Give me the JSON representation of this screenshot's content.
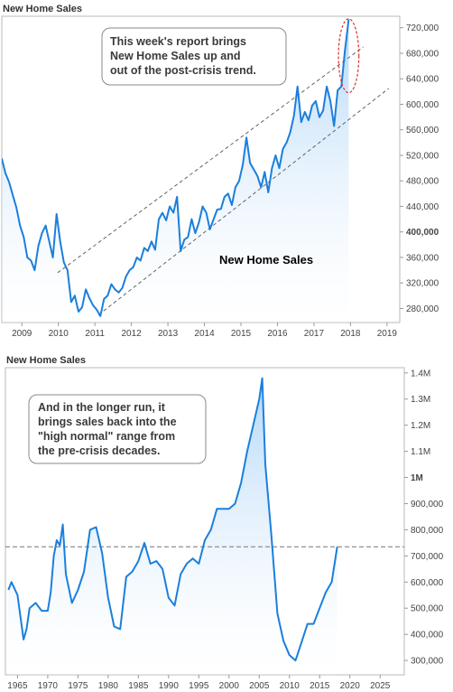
{
  "chart_data": [
    {
      "type": "area",
      "title": "New Home Sales",
      "xlabel": "",
      "ylabel": "",
      "xlim": [
        2008.45,
        2019.35
      ],
      "ylim": [
        258000,
        738000
      ],
      "x_ticks": [
        "2009",
        "2010",
        "2011",
        "2012",
        "2013",
        "2014",
        "2015",
        "2016",
        "2017",
        "2018",
        "2019"
      ],
      "x_tick_values": [
        2009,
        2010,
        2011,
        2012,
        2013,
        2014,
        2015,
        2016,
        2017,
        2018,
        2019
      ],
      "y_ticks": [
        "280,000",
        "320,000",
        "360,000",
        "400,000",
        "440,000",
        "480,000",
        "520,000",
        "560,000",
        "600,000",
        "640,000",
        "680,000",
        "720,000"
      ],
      "y_tick_values": [
        280000,
        320000,
        360000,
        400000,
        440000,
        480000,
        520000,
        560000,
        600000,
        640000,
        680000,
        720000
      ],
      "y_tick_bold": "400,000",
      "grid": false,
      "line_color": "#1b7fdc",
      "fill_color": "#cfe6fb",
      "series_label": "New Home Sales",
      "series_label_color": "#1b7fdc",
      "annotation": "This week's report brings New Home Sales up and out of the post-crisis trend.",
      "annotation_lines": [
        "This week's report brings",
        "New Home Sales up and",
        "out of the post-crisis trend."
      ],
      "channel_lines": [
        {
          "x": [
            2009.98,
            2018.35
          ],
          "y": [
            336000,
            690000
          ]
        },
        {
          "x": [
            2011.1,
            2019.05
          ],
          "y": [
            270000,
            625000
          ]
        }
      ],
      "highlight_ellipse": {
        "center": [
          2017.95,
          676000
        ],
        "rx_years": 0.28,
        "ry_value": 58000,
        "color": "#e0302f"
      },
      "series": [
        {
          "x": [
            2008.45,
            2008.55,
            2008.65,
            2008.75,
            2008.85,
            2008.95,
            2009.05,
            2009.15,
            2009.25,
            2009.35,
            2009.45,
            2009.55,
            2009.65,
            2009.75,
            2009.85,
            2009.95,
            2010.05,
            2010.15,
            2010.25,
            2010.35,
            2010.45,
            2010.55,
            2010.65,
            2010.75,
            2010.85,
            2010.95,
            2011.05,
            2011.15,
            2011.25,
            2011.35,
            2011.45,
            2011.55,
            2011.65,
            2011.75,
            2011.85,
            2011.95,
            2012.05,
            2012.15,
            2012.25,
            2012.35,
            2012.45,
            2012.55,
            2012.65,
            2012.75,
            2012.85,
            2012.95,
            2013.05,
            2013.15,
            2013.25,
            2013.35,
            2013.45,
            2013.55,
            2013.65,
            2013.75,
            2013.85,
            2013.95,
            2014.05,
            2014.15,
            2014.25,
            2014.35,
            2014.45,
            2014.55,
            2014.65,
            2014.75,
            2014.85,
            2014.95,
            2015.05,
            2015.15,
            2015.25,
            2015.35,
            2015.45,
            2015.55,
            2015.65,
            2015.75,
            2015.85,
            2015.95,
            2016.05,
            2016.15,
            2016.25,
            2016.35,
            2016.45,
            2016.55,
            2016.65,
            2016.75,
            2016.85,
            2016.95,
            2017.05,
            2017.15,
            2017.25,
            2017.35,
            2017.45,
            2017.55,
            2017.65,
            2017.75,
            2017.85,
            2017.95
          ],
          "y": [
            515000,
            492000,
            478000,
            458000,
            438000,
            410000,
            392000,
            360000,
            355000,
            340000,
            378000,
            398000,
            410000,
            385000,
            360000,
            428000,
            385000,
            352000,
            340000,
            290000,
            300000,
            275000,
            282000,
            310000,
            296000,
            285000,
            278000,
            268000,
            295000,
            300000,
            318000,
            310000,
            305000,
            312000,
            330000,
            340000,
            345000,
            360000,
            355000,
            375000,
            370000,
            385000,
            372000,
            420000,
            430000,
            418000,
            440000,
            430000,
            455000,
            370000,
            388000,
            392000,
            420000,
            398000,
            415000,
            440000,
            430000,
            404000,
            420000,
            435000,
            436000,
            455000,
            460000,
            442000,
            470000,
            480000,
            505000,
            548000,
            508000,
            498000,
            488000,
            470000,
            494000,
            462000,
            500000,
            520000,
            500000,
            530000,
            540000,
            556000,
            582000,
            628000,
            572000,
            588000,
            575000,
            598000,
            605000,
            580000,
            590000,
            628000,
            605000,
            566000,
            622000,
            628000,
            685000,
            733000
          ]
        }
      ]
    },
    {
      "type": "area",
      "title": "New Home Sales",
      "xlabel": "",
      "ylabel": "",
      "xlim": [
        1963,
        2029
      ],
      "ylim": [
        245000,
        1420000
      ],
      "x_ticks": [
        "1965",
        "1970",
        "1975",
        "1980",
        "1985",
        "1990",
        "1995",
        "2000",
        "2005",
        "2010",
        "2015",
        "2020",
        "2025"
      ],
      "x_tick_values": [
        1965,
        1970,
        1975,
        1980,
        1985,
        1990,
        1995,
        2000,
        2005,
        2010,
        2015,
        2020,
        2025
      ],
      "y_ticks": [
        "300,000",
        "400,000",
        "500,000",
        "600,000",
        "700,000",
        "800,000",
        "900,000",
        "1M",
        "1.1M",
        "1.2M",
        "1.3M",
        "1.4M"
      ],
      "y_tick_values": [
        300000,
        400000,
        500000,
        600000,
        700000,
        800000,
        900000,
        1000000,
        1100000,
        1200000,
        1300000,
        1400000
      ],
      "y_tick_bold": "1M",
      "grid": false,
      "line_color": "#1b7fdc",
      "fill_color": "#cfe6fb",
      "reference_line": 735000,
      "annotation": "And in the longer run, it brings sales back into the \"high normal\" range from the pre-crisis decades.",
      "annotation_lines": [
        "And in the longer run, it",
        "brings sales back into the",
        "\"high normal\" range from",
        "the pre-crisis decades."
      ],
      "series": [
        {
          "x": [
            1963.5,
            1964,
            1965,
            1966,
            1966.5,
            1967,
            1968,
            1969,
            1970,
            1970.5,
            1971,
            1971.5,
            1972,
            1972.5,
            1973,
            1974,
            1975,
            1976,
            1977,
            1978,
            1979,
            1980,
            1981,
            1982,
            1983,
            1984,
            1985,
            1986,
            1987,
            1988,
            1989,
            1990,
            1991,
            1992,
            1993,
            1994,
            1995,
            1996,
            1997,
            1998,
            1999,
            2000,
            2001,
            2002,
            2003,
            2004,
            2005,
            2005.5,
            2006,
            2007,
            2008,
            2009,
            2010,
            2011,
            2012,
            2013,
            2014,
            2015,
            2016,
            2017,
            2017.9
          ],
          "y": [
            570000,
            600000,
            550000,
            380000,
            420000,
            500000,
            520000,
            490000,
            490000,
            560000,
            700000,
            760000,
            740000,
            820000,
            630000,
            520000,
            570000,
            640000,
            800000,
            810000,
            710000,
            540000,
            430000,
            420000,
            620000,
            640000,
            680000,
            750000,
            670000,
            680000,
            650000,
            540000,
            510000,
            630000,
            670000,
            690000,
            670000,
            760000,
            800000,
            880000,
            880000,
            880000,
            900000,
            980000,
            1100000,
            1200000,
            1300000,
            1380000,
            1050000,
            780000,
            480000,
            375000,
            320000,
            300000,
            370000,
            440000,
            440000,
            500000,
            560000,
            600000,
            735000
          ]
        }
      ]
    }
  ]
}
